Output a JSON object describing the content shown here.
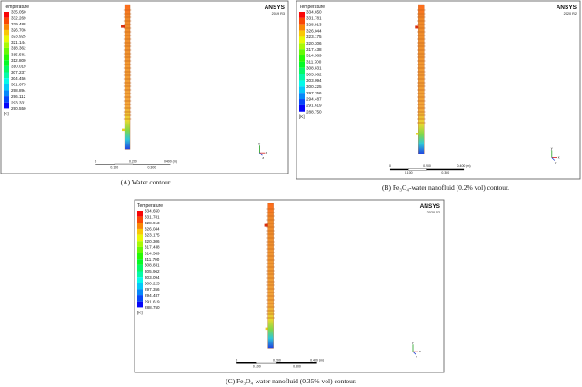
{
  "panels": [
    {
      "legend_title": "Temperature",
      "unit": "[K]",
      "brand": "ANSYS",
      "version": "2019 R3",
      "legend_values": [
        "335.050",
        "332.269",
        "329.488",
        "326.706",
        "323.925",
        "321.144",
        "318.362",
        "315.581",
        "312.800",
        "310.019",
        "307.237",
        "304.456",
        "301.675",
        "298.894",
        "296.112",
        "293.331",
        "290.550"
      ],
      "scale_top": [
        "0",
        "0.200",
        "0.400 (m)"
      ],
      "scale_bottom": [
        "0.100",
        "0.300"
      ],
      "axis_labels": [
        "y",
        "x",
        "z"
      ],
      "caption": "(A) Water contour"
    },
    {
      "legend_title": "Temperature",
      "unit": "[K]",
      "brand": "ANSYS",
      "version": "2020 R2",
      "legend_values": [
        "334.650",
        "331.781",
        "328.913",
        "326.044",
        "323.175",
        "320.306",
        "317.438",
        "314.569",
        "311.700",
        "308.831",
        "305.962",
        "303.094",
        "300.225",
        "297.356",
        "294.487",
        "291.619",
        "288.750"
      ],
      "scale_top": [
        "0",
        "0.200",
        "0.400 (m)"
      ],
      "scale_bottom": [
        "0.100",
        "0.300"
      ],
      "axis_labels": [
        "y",
        "x",
        "z"
      ],
      "caption": "(B) Fe₃O₄-water nanofluid (0.2% vol) contour."
    },
    {
      "legend_title": "Temperature",
      "unit": "[K]",
      "brand": "ANSYS",
      "version": "2020 R2",
      "legend_values": [
        "334.650",
        "331.781",
        "328.913",
        "326.044",
        "323.175",
        "320.306",
        "317.438",
        "314.569",
        "311.700",
        "308.831",
        "305.962",
        "303.094",
        "300.225",
        "297.356",
        "294.487",
        "291.619",
        "288.750"
      ],
      "scale_top": [
        "0",
        "0.200",
        "0.400 (m)"
      ],
      "scale_bottom": [
        "0.100",
        "0.300"
      ],
      "axis_labels": [
        "y",
        "x",
        "z"
      ],
      "caption": "(C) Fe₃O₄-water nanofluid (0.35% vol) contour."
    }
  ]
}
